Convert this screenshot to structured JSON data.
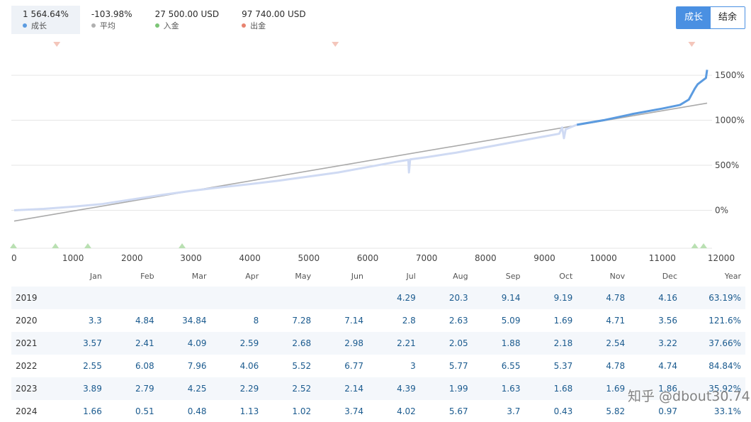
{
  "stats": [
    {
      "value": "1 564.64%",
      "label": "成长",
      "color": "#5b9be0"
    },
    {
      "value": "-103.98%",
      "label": "平均",
      "color": "#b0b0b0"
    },
    {
      "value": "27 500.00 USD",
      "label": "入金",
      "color": "#7cc576"
    },
    {
      "value": "97 740.00 USD",
      "label": "出金",
      "color": "#e8836f"
    }
  ],
  "toggle": {
    "growth": "成长",
    "balance": "结余"
  },
  "chart_data": {
    "type": "line",
    "xlim": [
      0,
      12000
    ],
    "ylim": [
      -280,
      1800
    ],
    "x_ticks": [
      0,
      1000,
      2000,
      3000,
      4000,
      5000,
      6000,
      7000,
      8000,
      9000,
      10000,
      11000,
      12000
    ],
    "y_ticks": [
      0,
      500,
      1000,
      1500
    ],
    "y_tick_labels": [
      "0%",
      "500%",
      "1000%",
      "1500%"
    ],
    "series": [
      {
        "name": "成长",
        "color": "#5b9be0",
        "faded_color": "#cfdaf3",
        "highlight_from_x": 9550,
        "points": [
          [
            0,
            0
          ],
          [
            500,
            15
          ],
          [
            1000,
            40
          ],
          [
            1500,
            70
          ],
          [
            2000,
            120
          ],
          [
            2500,
            170
          ],
          [
            3000,
            215
          ],
          [
            3500,
            255
          ],
          [
            4000,
            290
          ],
          [
            4500,
            330
          ],
          [
            5000,
            375
          ],
          [
            5500,
            420
          ],
          [
            6000,
            480
          ],
          [
            6500,
            540
          ],
          [
            6690,
            560
          ],
          [
            6700,
            420
          ],
          [
            6720,
            565
          ],
          [
            7000,
            590
          ],
          [
            7500,
            640
          ],
          [
            8000,
            700
          ],
          [
            8500,
            760
          ],
          [
            9000,
            820
          ],
          [
            9250,
            850
          ],
          [
            9300,
            920
          ],
          [
            9330,
            800
          ],
          [
            9360,
            900
          ],
          [
            9550,
            950
          ],
          [
            10000,
            1000
          ],
          [
            10500,
            1070
          ],
          [
            11000,
            1130
          ],
          [
            11300,
            1170
          ],
          [
            11450,
            1230
          ],
          [
            11550,
            1350
          ],
          [
            11600,
            1400
          ],
          [
            11700,
            1450
          ],
          [
            11740,
            1470
          ],
          [
            11760,
            1560
          ]
        ]
      },
      {
        "name": "平均",
        "color": "#aaaaaa",
        "points": [
          [
            0,
            -120
          ],
          [
            11760,
            1190
          ]
        ]
      }
    ],
    "deposit_markers_x": [
      0,
      700,
      1250,
      2850,
      11550,
      11700
    ],
    "withdrawal_markers_x": [
      700,
      5450,
      11500
    ]
  },
  "table": {
    "headers": [
      "Jan",
      "Feb",
      "Mar",
      "Apr",
      "May",
      "Jun",
      "Jul",
      "Aug",
      "Sep",
      "Oct",
      "Nov",
      "Dec",
      "Year"
    ],
    "rows": [
      {
        "year": "2019",
        "values": [
          "",
          "",
          "",
          "",
          "",
          "",
          "4.29",
          "20.3",
          "9.14",
          "9.19",
          "4.78",
          "4.16"
        ],
        "total": "63.19%"
      },
      {
        "year": "2020",
        "values": [
          "3.3",
          "4.84",
          "34.84",
          "8",
          "7.28",
          "7.14",
          "2.8",
          "2.63",
          "5.09",
          "1.69",
          "4.71",
          "3.56"
        ],
        "total": "121.6%"
      },
      {
        "year": "2021",
        "values": [
          "3.57",
          "2.41",
          "4.09",
          "2.59",
          "2.68",
          "2.98",
          "2.21",
          "2.05",
          "1.88",
          "2.18",
          "2.54",
          "3.22"
        ],
        "total": "37.66%"
      },
      {
        "year": "2022",
        "values": [
          "2.55",
          "6.08",
          "7.96",
          "4.06",
          "5.52",
          "6.77",
          "3",
          "5.77",
          "6.55",
          "5.37",
          "4.78",
          "4.74"
        ],
        "total": "84.84%"
      },
      {
        "year": "2023",
        "values": [
          "3.89",
          "2.79",
          "4.25",
          "2.29",
          "2.52",
          "2.14",
          "4.39",
          "1.99",
          "1.63",
          "1.68",
          "1.69",
          "1.86"
        ],
        "total": "35.92%"
      },
      {
        "year": "2024",
        "values": [
          "1.66",
          "0.51",
          "0.48",
          "1.13",
          "1.02",
          "3.74",
          "4.02",
          "5.67",
          "3.7",
          "0.43",
          "5.82",
          "0.97"
        ],
        "total": "33.1%"
      }
    ]
  },
  "watermark": "知乎 @dbout30.74"
}
